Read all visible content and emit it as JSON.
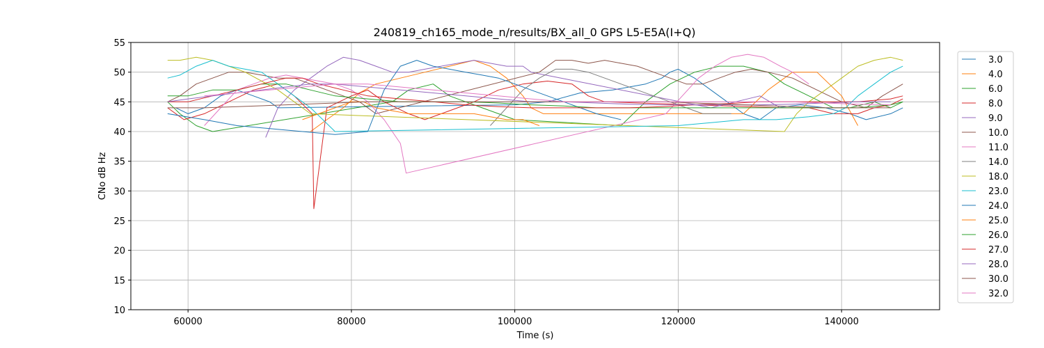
{
  "chart_data": {
    "type": "line",
    "title": "240819_ch165_mode_n/results/BX_all_0 GPS L5-E5A(I+Q)",
    "xlabel": "Time (s)",
    "ylabel": "CNo dB Hz",
    "xlim": [
      53000,
      152000
    ],
    "ylim": [
      10,
      55
    ],
    "xticks": [
      60000,
      80000,
      100000,
      120000,
      140000
    ],
    "yticks": [
      10,
      15,
      20,
      25,
      30,
      35,
      40,
      45,
      50,
      55
    ],
    "xtick_labels": [
      "60000",
      "80000",
      "100000",
      "120000",
      "140000"
    ],
    "ytick_labels": [
      "10",
      "15",
      "20",
      "25",
      "30",
      "35",
      "40",
      "45",
      "50",
      "55"
    ],
    "grid": true,
    "legend_position": "right, outside plot",
    "series": [
      {
        "name": "3.0",
        "color": "#1f77b4",
        "x": [
          58500,
          60000,
          62000,
          64000,
          66000,
          68000,
          70000,
          71000,
          100000,
          104000,
          108000,
          112000,
          114000,
          116000,
          118000,
          119000,
          120000,
          122000,
          124000,
          126000,
          128000,
          130000,
          132000,
          135000,
          138000,
          141000,
          143000,
          146000,
          147500
        ],
        "y": [
          44,
          43,
          44,
          46,
          47,
          46,
          45,
          44,
          44.5,
          45,
          46.5,
          47,
          47.5,
          48,
          49,
          50,
          50.5,
          49,
          47,
          45,
          43,
          42,
          44,
          44.5,
          44,
          43,
          42,
          43,
          44
        ]
      },
      {
        "name": "4.0",
        "color": "#ff7f0e",
        "x": [
          75000,
          77000,
          79000,
          81000,
          83000,
          86000,
          89000,
          92000,
          95000,
          97000,
          99000,
          101000,
          102000,
          103500,
          128000,
          131000,
          134000,
          137000,
          140000,
          142000
        ],
        "y": [
          40,
          42,
          44,
          46.5,
          48,
          49,
          50,
          51,
          52,
          51,
          49,
          46,
          44,
          43,
          43,
          47,
          50,
          50,
          46,
          41
        ]
      },
      {
        "name": "6.0",
        "color": "#2ca02c",
        "x": [
          57500,
          59000,
          61000,
          63000,
          85000,
          87000,
          90000,
          92000,
          94000,
          96000,
          98000,
          100000,
          113000,
          116000,
          119000,
          122000,
          125000,
          128000,
          131000,
          133000,
          136000,
          139000,
          141000,
          144000,
          146000,
          147500
        ],
        "y": [
          45,
          43,
          41,
          40,
          45,
          47,
          48,
          46,
          45,
          44,
          43,
          42,
          41,
          45,
          48,
          50,
          51,
          51,
          50,
          48,
          46,
          44,
          44,
          45,
          44,
          45
        ]
      },
      {
        "name": "8.0",
        "color": "#d62728",
        "x": [
          57500,
          59500,
          62000,
          65000,
          68000,
          71000,
          73000,
          75200,
          75400,
          77000,
          80000,
          82000,
          84000,
          87000,
          89000,
          91000,
          93000,
          95000,
          98000,
          101000,
          104000,
          107000,
          109000,
          111000,
          133000,
          136000,
          139000,
          142000,
          144000,
          146000,
          147500
        ],
        "y": [
          44,
          42,
          43,
          45,
          47,
          48,
          46,
          43,
          27,
          44,
          46,
          47,
          45,
          43,
          42,
          43,
          44,
          45,
          47,
          48,
          48.5,
          48,
          46,
          45,
          44,
          44,
          43,
          43,
          44,
          44.5,
          45.5
        ]
      },
      {
        "name": "9.0",
        "color": "#9467bd",
        "x": [
          69500,
          71000,
          73000,
          75000,
          77000,
          79000,
          81000,
          83000,
          85000,
          87000,
          89000,
          91000,
          93000,
          95000,
          97000,
          99000,
          101000,
          102000,
          124000,
          127000,
          130000,
          132500
        ],
        "y": [
          39,
          44,
          47,
          49,
          51,
          52.5,
          52,
          51,
          50,
          50,
          50.5,
          51,
          51.5,
          52,
          51.5,
          51,
          51,
          50,
          44,
          45,
          46,
          44
        ]
      },
      {
        "name": "10.0",
        "color": "#8c564b",
        "x": [
          57500,
          59000,
          61000,
          63000,
          65000,
          67000,
          69000,
          71000,
          73000,
          75000,
          77000,
          79000,
          81000,
          83000,
          103000,
          105000,
          107000,
          109000,
          111000,
          113000,
          115000,
          117000,
          119000,
          121000,
          123000,
          125000,
          127000,
          129000,
          131000,
          134000,
          137000,
          140000,
          143000,
          145000,
          147500
        ],
        "y": [
          45,
          46,
          48,
          49,
          50,
          50,
          49.5,
          49,
          49,
          48,
          47,
          46,
          45,
          43,
          50,
          52,
          52,
          51.5,
          52,
          51.5,
          51,
          50,
          49,
          48,
          48,
          49,
          50,
          50.5,
          50,
          49,
          47,
          45,
          44,
          46,
          48
        ]
      },
      {
        "name": "11.0",
        "color": "#e377c2",
        "x": [
          62000,
          64000,
          66000,
          68000,
          70000,
          72000,
          74000,
          76000,
          78000,
          80000,
          82000,
          84000,
          86000,
          86700,
          118500,
          120500,
          122500,
          124500,
          126500,
          128500,
          130500,
          132500,
          134000,
          136000
        ],
        "y": [
          41,
          44,
          47,
          48,
          49,
          49.5,
          49,
          48.5,
          48,
          47,
          45,
          42,
          38,
          33,
          43,
          46,
          49,
          51,
          52.5,
          53,
          52.5,
          51,
          50,
          48
        ]
      },
      {
        "name": "14.0",
        "color": "#7f7f7f",
        "x": [
          97000,
          99000,
          101000,
          103000,
          105000,
          107000,
          109000,
          111000,
          113000,
          115000,
          117000,
          119000,
          121000,
          123000,
          125000,
          126500
        ],
        "y": [
          41,
          44,
          47,
          49,
          50.5,
          50.5,
          50,
          49,
          48,
          47,
          46,
          45,
          44,
          43,
          43,
          43
        ]
      },
      {
        "name": "18.0",
        "color": "#bcbd22",
        "x": [
          57500,
          59000,
          61000,
          63000,
          65000,
          67000,
          69000,
          71000,
          73000,
          75000,
          133000,
          134500,
          136000,
          138000,
          140000,
          142000,
          144000,
          146000,
          147500
        ],
        "y": [
          52,
          52,
          52.5,
          52,
          51,
          50,
          48.5,
          47,
          45,
          43,
          40,
          43,
          45,
          47,
          49,
          51,
          52,
          52.5,
          52
        ]
      },
      {
        "name": "23.0",
        "color": "#17becf",
        "x": [
          57500,
          59000,
          61000,
          63000,
          65000,
          67000,
          69000,
          71000,
          73000,
          75000,
          76500,
          78000,
          120000,
          124000,
          128000,
          132000,
          136000,
          139000,
          140500,
          142000,
          144000,
          146000,
          147500
        ],
        "y": [
          49,
          49.5,
          51,
          52,
          51,
          50.5,
          50,
          48,
          46,
          44,
          42,
          40,
          41,
          41.5,
          42,
          42,
          42.5,
          43,
          44,
          46,
          48,
          50,
          51
        ]
      },
      {
        "name": "24.0",
        "color": "#1f77b4",
        "x": [
          57500,
          62000,
          66000,
          70000,
          74000,
          78000,
          82000,
          84000,
          86000,
          88000,
          90000,
          92000,
          94000,
          96000,
          98000,
          100000,
          102000,
          104000,
          106000,
          108000,
          110000,
          113000
        ],
        "y": [
          43,
          42,
          41,
          40.5,
          40,
          39.5,
          40,
          47,
          51,
          52,
          51,
          50.5,
          50,
          49.5,
          49,
          48,
          47,
          46,
          45,
          44,
          43,
          42
        ]
      },
      {
        "name": "25.0",
        "color": "#ff7f0e",
        "x": [
          74000,
          76000,
          78000,
          80000,
          81500,
          83000,
          85000,
          87000,
          89000,
          91000,
          93000,
          95000,
          97000,
          99000,
          101000,
          103000
        ],
        "y": [
          42,
          43,
          44,
          45,
          45,
          44,
          43.5,
          43,
          43,
          43,
          43,
          43,
          42.5,
          42,
          42,
          41
        ]
      },
      {
        "name": "26.0",
        "color": "#2ca02c",
        "x": [
          57500,
          60000,
          63000,
          66000,
          69000,
          72000,
          75000,
          78000,
          82000,
          86000,
          90000,
          94000,
          98000,
          102000,
          106000,
          110000,
          114000,
          118000,
          122000,
          126000,
          130000,
          134000,
          138000,
          142000,
          146000,
          147500
        ],
        "y": [
          46,
          46,
          47,
          47,
          48,
          48,
          47,
          46,
          45.5,
          45,
          45,
          45,
          44.8,
          44.5,
          44.3,
          44,
          44,
          44,
          44,
          44,
          44,
          44,
          44,
          44,
          44.5,
          45
        ]
      },
      {
        "name": "27.0",
        "color": "#d62728",
        "x": [
          57500,
          60000,
          63000,
          66000,
          69000,
          72000,
          74000,
          76000,
          79000,
          82000,
          86000,
          90000,
          94000,
          98000,
          102000,
          106000,
          110000,
          114000,
          118000,
          122000,
          126000,
          130000,
          134000,
          138000,
          142000,
          146000,
          147500
        ],
        "y": [
          45,
          45,
          46,
          47,
          48,
          49,
          49,
          48,
          47,
          46,
          45.5,
          45,
          44.5,
          44.2,
          44,
          44,
          44,
          44,
          44.2,
          44.5,
          44.7,
          45,
          45,
          45,
          45,
          45.5,
          46
        ]
      },
      {
        "name": "28.0",
        "color": "#9467bd",
        "x": [
          57500,
          60000,
          63000,
          66000,
          69000,
          72000,
          75000,
          78000,
          82000,
          86000,
          90000,
          94000,
          98000,
          102000,
          106000,
          110000,
          114000,
          118000,
          122000,
          126000,
          130000,
          134000,
          138000,
          142000,
          146000
        ],
        "y": [
          45,
          45.5,
          46,
          46.5,
          47,
          47.5,
          48,
          48,
          47.5,
          47,
          46.5,
          46,
          45.5,
          45,
          45,
          44.8,
          44.6,
          44.5,
          44.5,
          44.5,
          44.5,
          44.6,
          44.8,
          45,
          45
        ]
      },
      {
        "name": "30.0",
        "color": "#8c564b",
        "x": [
          57500,
          62000,
          66000,
          70000,
          74000,
          78000,
          82000,
          86000,
          90000,
          94000,
          98000,
          102000,
          106000,
          110000,
          114000,
          118000,
          122000,
          126000,
          130000,
          134000,
          138000,
          142000,
          146000
        ],
        "y": [
          44,
          44,
          44.2,
          44.4,
          44.6,
          44.8,
          45,
          45,
          45,
          45,
          45,
          45,
          45,
          45,
          45,
          45,
          44.8,
          44.6,
          44.4,
          44.2,
          44,
          44,
          44
        ]
      },
      {
        "name": "32.0",
        "color": "#e377c2",
        "x": [
          62000,
          66000,
          70000,
          74000,
          78000,
          82000,
          86000,
          90000,
          94000,
          98000,
          102000,
          106000,
          110000,
          114000,
          118000,
          122000,
          126000,
          130000,
          134000,
          138000,
          142000,
          146000
        ],
        "y": [
          46,
          46.5,
          47,
          47.5,
          48,
          48,
          47.5,
          47,
          46.5,
          46,
          45.5,
          45,
          45,
          45,
          45,
          45,
          45,
          45,
          45,
          44.8,
          44.6,
          44.5
        ]
      }
    ]
  }
}
